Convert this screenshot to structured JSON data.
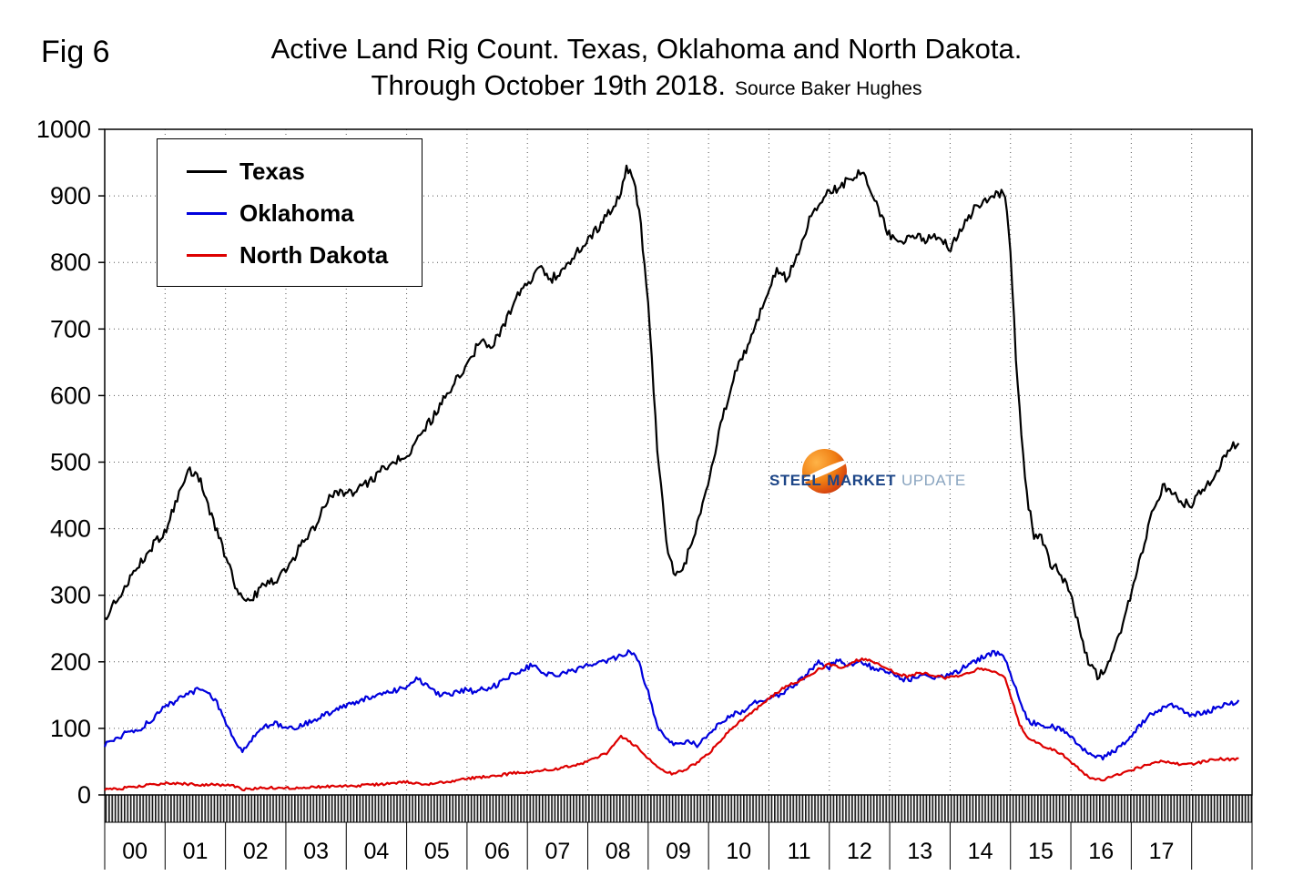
{
  "figure": {
    "fig_label": "Fig 6",
    "title_line1": "Active Land Rig Count. Texas, Oklahoma and North Dakota.",
    "title_line2": "Through October 19th 2018.",
    "source": "Source Baker Hughes"
  },
  "watermark": {
    "icon": "orange-swoosh-ball-icon",
    "word1": "STEEL",
    "word2": "MARKET",
    "word3": "UPDATE"
  },
  "chart_data": {
    "type": "line",
    "title": "Active Land Rig Count. Texas, Oklahoma and North Dakota. Through October 19th 2018.",
    "subtitle": "Source Baker Hughes",
    "xlabel": "",
    "ylabel": "",
    "grid": "dotted horizontal every 100, dotted vertical every year",
    "legend_position": "top-left inside plot",
    "x_axis": {
      "range": [
        2000,
        2019
      ],
      "tick_labels": [
        "00",
        "01",
        "02",
        "03",
        "04",
        "05",
        "06",
        "07",
        "08",
        "09",
        "10",
        "11",
        "12",
        "13",
        "14",
        "15",
        "16",
        "17"
      ],
      "note": "labels centered on each year; data runs through mid-October 2018"
    },
    "y_axis": {
      "range": [
        0,
        1000
      ],
      "tick_interval": 100,
      "tick_labels": [
        "0",
        "100",
        "200",
        "300",
        "400",
        "500",
        "600",
        "700",
        "800",
        "900",
        "1000"
      ]
    },
    "series": [
      {
        "name": "Texas",
        "color": "#000000",
        "noise": 7,
        "points": [
          [
            2000.0,
            265
          ],
          [
            2000.25,
            300
          ],
          [
            2000.5,
            335
          ],
          [
            2000.75,
            370
          ],
          [
            2001.0,
            395
          ],
          [
            2001.2,
            445
          ],
          [
            2001.4,
            488
          ],
          [
            2001.55,
            480
          ],
          [
            2001.75,
            425
          ],
          [
            2002.0,
            360
          ],
          [
            2002.2,
            305
          ],
          [
            2002.4,
            290
          ],
          [
            2002.6,
            312
          ],
          [
            2002.8,
            322
          ],
          [
            2003.0,
            335
          ],
          [
            2003.25,
            375
          ],
          [
            2003.5,
            405
          ],
          [
            2003.7,
            445
          ],
          [
            2003.9,
            455
          ],
          [
            2004.1,
            455
          ],
          [
            2004.3,
            465
          ],
          [
            2004.5,
            480
          ],
          [
            2004.75,
            500
          ],
          [
            2005.0,
            510
          ],
          [
            2005.25,
            545
          ],
          [
            2005.5,
            575
          ],
          [
            2005.75,
            615
          ],
          [
            2006.0,
            645
          ],
          [
            2006.2,
            680
          ],
          [
            2006.4,
            675
          ],
          [
            2006.6,
            705
          ],
          [
            2006.8,
            745
          ],
          [
            2007.0,
            765
          ],
          [
            2007.2,
            790
          ],
          [
            2007.4,
            775
          ],
          [
            2007.6,
            790
          ],
          [
            2007.8,
            815
          ],
          [
            2008.0,
            835
          ],
          [
            2008.2,
            855
          ],
          [
            2008.4,
            880
          ],
          [
            2008.55,
            905
          ],
          [
            2008.65,
            945
          ],
          [
            2008.75,
            925
          ],
          [
            2008.85,
            880
          ],
          [
            2009.0,
            740
          ],
          [
            2009.15,
            520
          ],
          [
            2009.3,
            380
          ],
          [
            2009.45,
            325
          ],
          [
            2009.6,
            345
          ],
          [
            2009.8,
            405
          ],
          [
            2010.0,
            470
          ],
          [
            2010.2,
            555
          ],
          [
            2010.4,
            625
          ],
          [
            2010.6,
            665
          ],
          [
            2010.8,
            710
          ],
          [
            2011.0,
            760
          ],
          [
            2011.15,
            790
          ],
          [
            2011.3,
            775
          ],
          [
            2011.5,
            820
          ],
          [
            2011.7,
            870
          ],
          [
            2011.85,
            895
          ],
          [
            2012.0,
            905
          ],
          [
            2012.2,
            915
          ],
          [
            2012.4,
            930
          ],
          [
            2012.55,
            935
          ],
          [
            2012.7,
            905
          ],
          [
            2012.85,
            870
          ],
          [
            2013.0,
            840
          ],
          [
            2013.2,
            828
          ],
          [
            2013.4,
            840
          ],
          [
            2013.6,
            835
          ],
          [
            2013.8,
            838
          ],
          [
            2014.0,
            822
          ],
          [
            2014.2,
            852
          ],
          [
            2014.4,
            880
          ],
          [
            2014.6,
            895
          ],
          [
            2014.8,
            905
          ],
          [
            2014.92,
            900
          ],
          [
            2015.0,
            820
          ],
          [
            2015.1,
            640
          ],
          [
            2015.25,
            460
          ],
          [
            2015.4,
            385
          ],
          [
            2015.5,
            390
          ],
          [
            2015.65,
            350
          ],
          [
            2015.8,
            335
          ],
          [
            2016.0,
            305
          ],
          [
            2016.15,
            245
          ],
          [
            2016.3,
            195
          ],
          [
            2016.45,
            178
          ],
          [
            2016.6,
            195
          ],
          [
            2016.8,
            240
          ],
          [
            2017.0,
            300
          ],
          [
            2017.2,
            375
          ],
          [
            2017.4,
            440
          ],
          [
            2017.55,
            465
          ],
          [
            2017.7,
            455
          ],
          [
            2017.85,
            440
          ],
          [
            2018.0,
            435
          ],
          [
            2018.15,
            455
          ],
          [
            2018.3,
            472
          ],
          [
            2018.5,
            500
          ],
          [
            2018.65,
            520
          ],
          [
            2018.8,
            535
          ]
        ]
      },
      {
        "name": "Oklahoma",
        "color": "#0000dd",
        "noise": 4,
        "points": [
          [
            2000.0,
            75
          ],
          [
            2000.2,
            85
          ],
          [
            2000.4,
            95
          ],
          [
            2000.6,
            100
          ],
          [
            2000.8,
            115
          ],
          [
            2001.0,
            132
          ],
          [
            2001.2,
            142
          ],
          [
            2001.4,
            152
          ],
          [
            2001.55,
            158
          ],
          [
            2001.7,
            152
          ],
          [
            2001.85,
            140
          ],
          [
            2002.0,
            110
          ],
          [
            2002.15,
            78
          ],
          [
            2002.3,
            66
          ],
          [
            2002.45,
            85
          ],
          [
            2002.6,
            100
          ],
          [
            2002.8,
            108
          ],
          [
            2003.0,
            100
          ],
          [
            2003.2,
            103
          ],
          [
            2003.4,
            110
          ],
          [
            2003.6,
            118
          ],
          [
            2003.8,
            126
          ],
          [
            2004.0,
            135
          ],
          [
            2004.2,
            140
          ],
          [
            2004.4,
            148
          ],
          [
            2004.6,
            152
          ],
          [
            2004.8,
            157
          ],
          [
            2005.0,
            162
          ],
          [
            2005.15,
            173
          ],
          [
            2005.3,
            168
          ],
          [
            2005.5,
            152
          ],
          [
            2005.7,
            150
          ],
          [
            2005.9,
            158
          ],
          [
            2006.1,
            156
          ],
          [
            2006.3,
            160
          ],
          [
            2006.5,
            165
          ],
          [
            2006.7,
            178
          ],
          [
            2006.9,
            188
          ],
          [
            2007.1,
            195
          ],
          [
            2007.3,
            182
          ],
          [
            2007.5,
            180
          ],
          [
            2007.7,
            186
          ],
          [
            2007.9,
            190
          ],
          [
            2008.1,
            198
          ],
          [
            2008.3,
            202
          ],
          [
            2008.5,
            207
          ],
          [
            2008.65,
            215
          ],
          [
            2008.8,
            210
          ],
          [
            2009.0,
            155
          ],
          [
            2009.15,
            105
          ],
          [
            2009.3,
            82
          ],
          [
            2009.5,
            76
          ],
          [
            2009.65,
            82
          ],
          [
            2009.8,
            74
          ],
          [
            2010.0,
            92
          ],
          [
            2010.2,
            108
          ],
          [
            2010.4,
            120
          ],
          [
            2010.6,
            128
          ],
          [
            2010.8,
            140
          ],
          [
            2011.0,
            147
          ],
          [
            2011.2,
            152
          ],
          [
            2011.4,
            165
          ],
          [
            2011.6,
            178
          ],
          [
            2011.8,
            200
          ],
          [
            2012.0,
            192
          ],
          [
            2012.15,
            205
          ],
          [
            2012.3,
            195
          ],
          [
            2012.5,
            200
          ],
          [
            2012.7,
            192
          ],
          [
            2012.9,
            188
          ],
          [
            2013.1,
            178
          ],
          [
            2013.3,
            172
          ],
          [
            2013.5,
            180
          ],
          [
            2013.7,
            176
          ],
          [
            2013.9,
            178
          ],
          [
            2014.1,
            185
          ],
          [
            2014.3,
            195
          ],
          [
            2014.5,
            205
          ],
          [
            2014.7,
            213
          ],
          [
            2014.85,
            210
          ],
          [
            2015.0,
            185
          ],
          [
            2015.15,
            140
          ],
          [
            2015.3,
            110
          ],
          [
            2015.5,
            105
          ],
          [
            2015.7,
            102
          ],
          [
            2015.9,
            95
          ],
          [
            2016.1,
            78
          ],
          [
            2016.3,
            62
          ],
          [
            2016.5,
            55
          ],
          [
            2016.7,
            65
          ],
          [
            2016.9,
            80
          ],
          [
            2017.1,
            100
          ],
          [
            2017.3,
            120
          ],
          [
            2017.5,
            130
          ],
          [
            2017.65,
            136
          ],
          [
            2017.8,
            128
          ],
          [
            2018.0,
            120
          ],
          [
            2018.2,
            124
          ],
          [
            2018.4,
            130
          ],
          [
            2018.6,
            136
          ],
          [
            2018.8,
            140
          ]
        ]
      },
      {
        "name": "North Dakota",
        "color": "#dd0000",
        "noise": 2,
        "points": [
          [
            2000.0,
            8
          ],
          [
            2000.3,
            10
          ],
          [
            2000.6,
            13
          ],
          [
            2001.0,
            18
          ],
          [
            2001.4,
            16
          ],
          [
            2001.8,
            15
          ],
          [
            2002.1,
            14
          ],
          [
            2002.3,
            8
          ],
          [
            2002.6,
            11
          ],
          [
            2003.0,
            10
          ],
          [
            2003.4,
            12
          ],
          [
            2003.8,
            13
          ],
          [
            2004.2,
            14
          ],
          [
            2004.6,
            16
          ],
          [
            2005.0,
            20
          ],
          [
            2005.3,
            16
          ],
          [
            2005.6,
            19
          ],
          [
            2006.0,
            25
          ],
          [
            2006.4,
            28
          ],
          [
            2006.8,
            33
          ],
          [
            2007.2,
            36
          ],
          [
            2007.6,
            41
          ],
          [
            2008.0,
            50
          ],
          [
            2008.3,
            62
          ],
          [
            2008.55,
            88
          ],
          [
            2008.7,
            80
          ],
          [
            2008.85,
            70
          ],
          [
            2009.0,
            55
          ],
          [
            2009.2,
            40
          ],
          [
            2009.4,
            31
          ],
          [
            2009.6,
            38
          ],
          [
            2009.8,
            48
          ],
          [
            2010.0,
            62
          ],
          [
            2010.2,
            82
          ],
          [
            2010.4,
            102
          ],
          [
            2010.6,
            115
          ],
          [
            2010.8,
            130
          ],
          [
            2011.0,
            145
          ],
          [
            2011.2,
            158
          ],
          [
            2011.4,
            168
          ],
          [
            2011.6,
            175
          ],
          [
            2011.8,
            188
          ],
          [
            2012.0,
            196
          ],
          [
            2012.2,
            190
          ],
          [
            2012.4,
            200
          ],
          [
            2012.55,
            205
          ],
          [
            2012.7,
            200
          ],
          [
            2012.9,
            192
          ],
          [
            2013.1,
            183
          ],
          [
            2013.3,
            178
          ],
          [
            2013.5,
            184
          ],
          [
            2013.7,
            180
          ],
          [
            2013.9,
            176
          ],
          [
            2014.1,
            178
          ],
          [
            2014.3,
            183
          ],
          [
            2014.5,
            190
          ],
          [
            2014.7,
            186
          ],
          [
            2014.9,
            178
          ],
          [
            2015.0,
            150
          ],
          [
            2015.15,
            105
          ],
          [
            2015.3,
            85
          ],
          [
            2015.5,
            75
          ],
          [
            2015.7,
            68
          ],
          [
            2015.9,
            58
          ],
          [
            2016.1,
            42
          ],
          [
            2016.3,
            26
          ],
          [
            2016.5,
            22
          ],
          [
            2016.7,
            28
          ],
          [
            2016.9,
            34
          ],
          [
            2017.1,
            40
          ],
          [
            2017.3,
            46
          ],
          [
            2017.5,
            50
          ],
          [
            2017.7,
            48
          ],
          [
            2017.9,
            45
          ],
          [
            2018.1,
            48
          ],
          [
            2018.3,
            52
          ],
          [
            2018.5,
            54
          ],
          [
            2018.8,
            53
          ]
        ]
      }
    ]
  }
}
